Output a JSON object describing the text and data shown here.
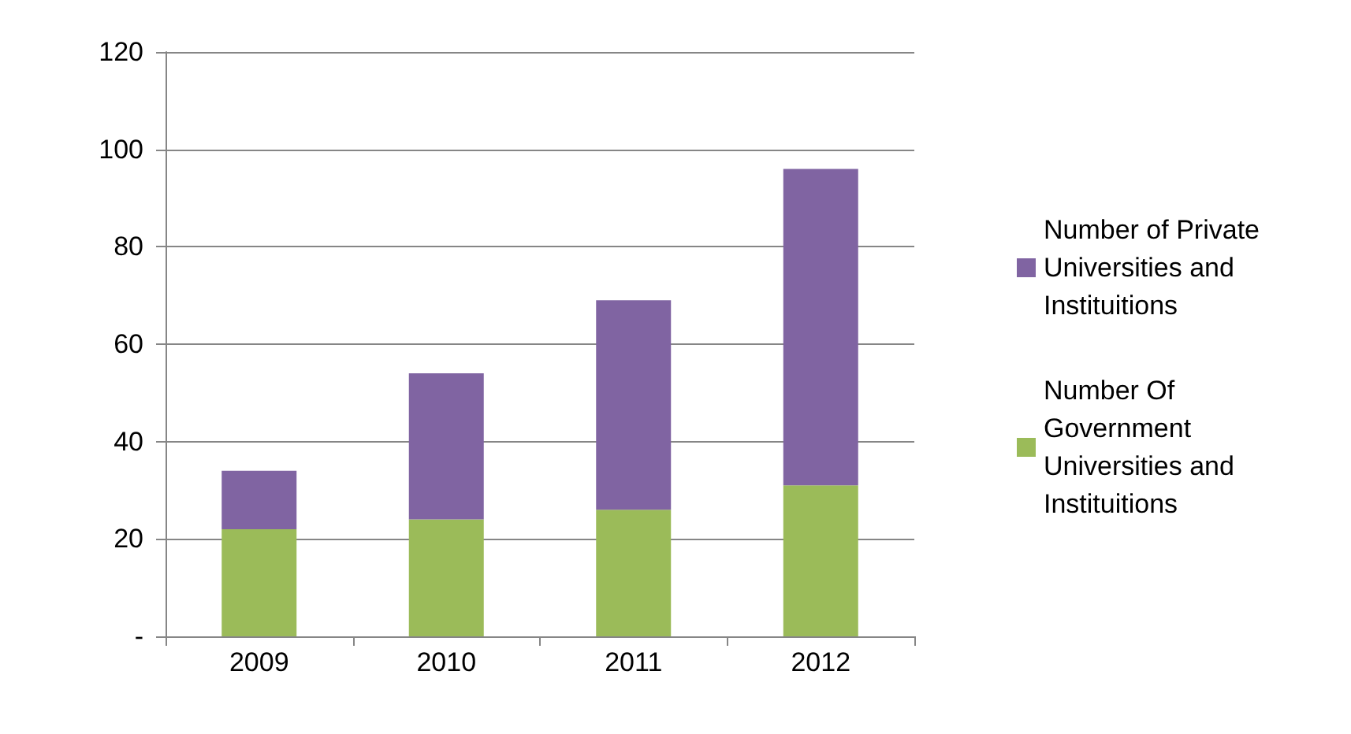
{
  "chart_data": {
    "type": "bar",
    "stacked": true,
    "categories": [
      "2009",
      "2010",
      "2011",
      "2012"
    ],
    "series": [
      {
        "name": "Number Of Government Universities and Instituitions",
        "color": "#9bbb59",
        "values": [
          22,
          24,
          26,
          31
        ]
      },
      {
        "name": "Number of Private Universities and Instituitions",
        "color": "#8064a2",
        "values": [
          12,
          30,
          43,
          65
        ]
      }
    ],
    "ylim": [
      0,
      120
    ],
    "yticks": [
      {
        "value": 0,
        "label": "-"
      },
      20,
      40,
      60,
      80,
      100,
      120
    ],
    "grid": "y",
    "legend": "right"
  }
}
